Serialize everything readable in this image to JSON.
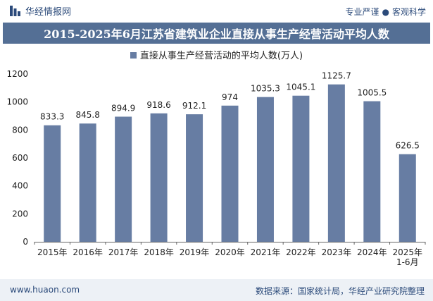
{
  "header": {
    "brand": "华经情报网",
    "slogan_left": "专业严谨",
    "slogan_sep": "●",
    "slogan_right": "客观科学"
  },
  "footer": {
    "website": "www.huaon.com",
    "source": "数据来源：国家统计局，华经产业研究院整理"
  },
  "colors": {
    "bar": "#677da3",
    "title_bg": "#546f95",
    "brand": "#2b4a7a"
  },
  "chart_data": {
    "type": "bar",
    "title": "2015-2025年6月江苏省建筑业企业直接从事生产经营活动平均人数",
    "xlabel": "",
    "ylabel": "",
    "ylim": [
      0,
      1200
    ],
    "yticks": [
      0,
      200,
      400,
      600,
      800,
      1000,
      1200
    ],
    "grid": false,
    "legend_position": "top-center",
    "categories": [
      "2015年",
      "2016年",
      "2017年",
      "2018年",
      "2019年",
      "2020年",
      "2021年",
      "2022年",
      "2023年",
      "2024年",
      "2025年\n1-6月"
    ],
    "series": [
      {
        "name": "直接从事生产经营活动的平均人数(万人)",
        "values": [
          833.3,
          845.8,
          894.9,
          918.6,
          912.1,
          974,
          1035.3,
          1045.1,
          1125.7,
          1005.5,
          626.5
        ],
        "labels": [
          "833.3",
          "845.8",
          "894.9",
          "918.6",
          "912.1",
          "974",
          "1035.3",
          "1045.1",
          "1125.7",
          "1005.5",
          "626.5"
        ]
      }
    ]
  }
}
